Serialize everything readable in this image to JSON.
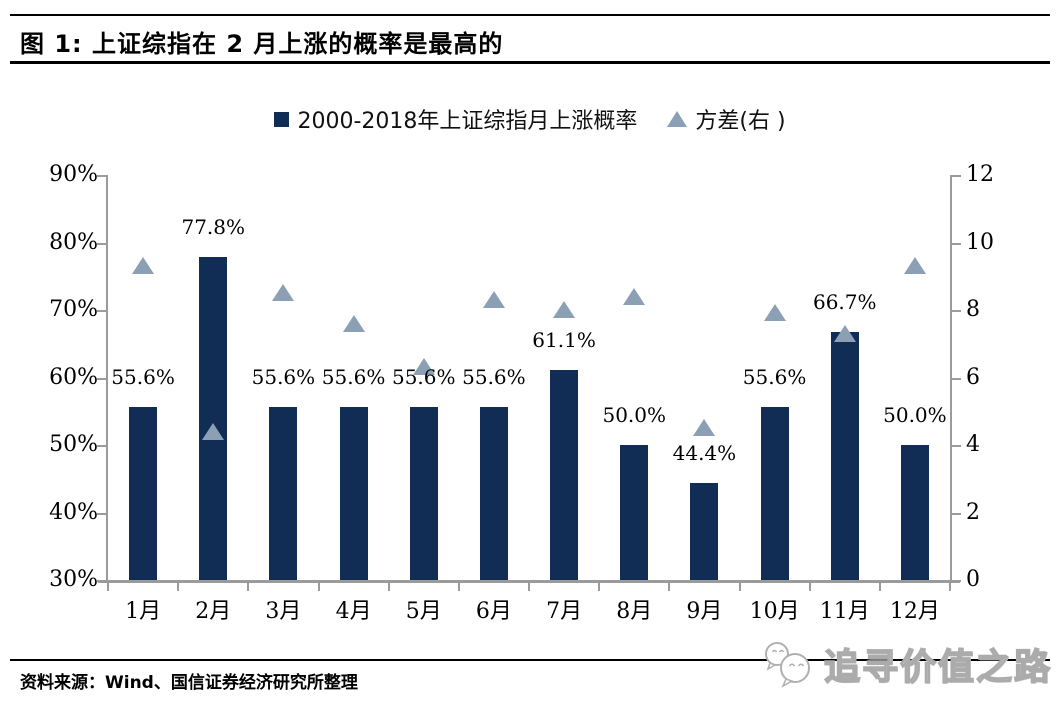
{
  "figure": {
    "title": "图 1: 上证综指在 2 月上涨的概率是最高的",
    "source_note": "资料来源：Wind、国信证券经济研究所整理",
    "watermark": "追寻价值之路"
  },
  "legend": {
    "bar_label": "2000-2018年上证综指月上涨概率",
    "triangle_label": "方差(右 )"
  },
  "colors": {
    "bar": "#112D55",
    "triangle": "#8CA0B5",
    "axis": "#9B9B9B"
  },
  "chart_data": {
    "type": "bar",
    "title": "2000-2018年上证综指月上涨概率 / 方差",
    "categories": [
      "1月",
      "2月",
      "3月",
      "4月",
      "5月",
      "6月",
      "7月",
      "8月",
      "9月",
      "10月",
      "11月",
      "12月"
    ],
    "series": [
      {
        "name": "2000-2018年上证综指月上涨概率",
        "type": "bar",
        "axis": "left",
        "unit": "%",
        "values": [
          55.6,
          77.8,
          55.6,
          55.6,
          55.6,
          55.6,
          61.1,
          50.0,
          44.4,
          55.6,
          66.7,
          50.0
        ],
        "labels": [
          "55.6%",
          "77.8%",
          "55.6%",
          "55.6%",
          "55.6%",
          "55.6%",
          "61.1%",
          "50.0%",
          "44.4%",
          "55.6%",
          "66.7%",
          "50.0%"
        ]
      },
      {
        "name": "方差(右 )",
        "type": "scatter",
        "marker": "triangle",
        "axis": "right",
        "values": [
          9.3,
          4.4,
          8.5,
          7.6,
          6.3,
          8.3,
          8.0,
          8.4,
          4.5,
          7.9,
          7.3,
          9.3
        ]
      }
    ],
    "left_axis": {
      "min": 30,
      "max": 90,
      "ticks": [
        "90%",
        "80%",
        "70%",
        "60%",
        "50%",
        "40%",
        "30%"
      ],
      "tick_values": [
        90,
        80,
        70,
        60,
        50,
        40,
        30
      ]
    },
    "right_axis": {
      "min": 0,
      "max": 12,
      "ticks": [
        "12",
        "10",
        "8",
        "6",
        "4",
        "2",
        "0"
      ],
      "tick_values": [
        12,
        10,
        8,
        6,
        4,
        2,
        0
      ]
    },
    "grid": false,
    "legend_position": "top"
  }
}
